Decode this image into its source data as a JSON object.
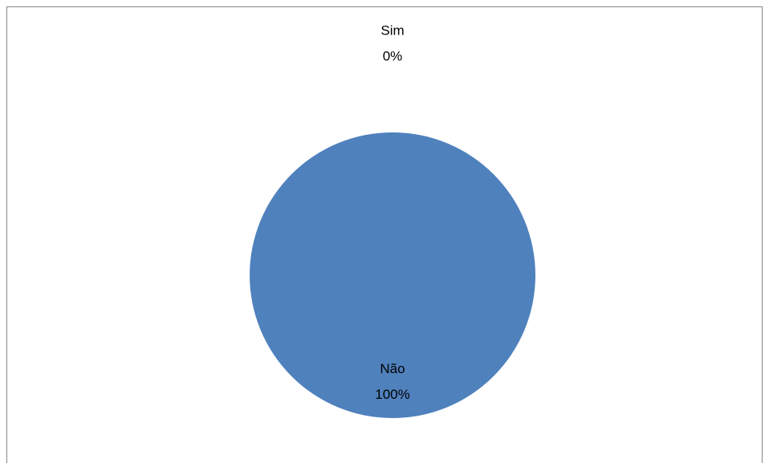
{
  "chart_data": {
    "type": "pie",
    "categories": [
      "Sim",
      "Não"
    ],
    "values": [
      0,
      100
    ],
    "value_labels": [
      "0%",
      "100%"
    ],
    "color": "#4f81bd"
  }
}
